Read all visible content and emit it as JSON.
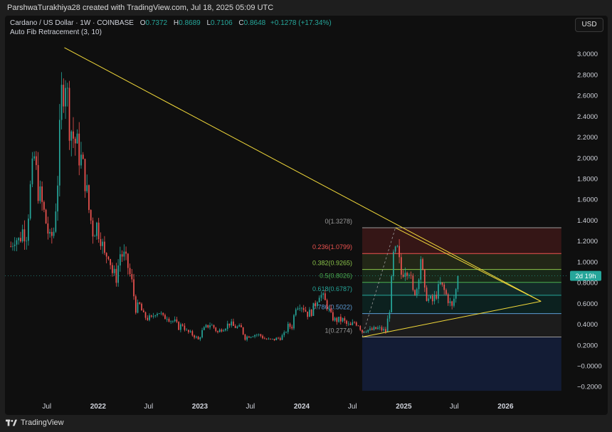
{
  "header": {
    "credit": "ParshwaTurakhiya28 created with TradingView.com, Jul 18, 2025 05:09 UTC"
  },
  "legend": {
    "symbol": "Cardano / US Dollar · 1W · COINBASE",
    "open_label": "O",
    "open": "0.7372",
    "high_label": "H",
    "high": "0.8689",
    "low_label": "L",
    "low": "0.7106",
    "close_label": "C",
    "close": "0.8648",
    "change": "+0.1278 (+17.34%)",
    "indicator": "Auto Fib Retracement (3, 10)"
  },
  "currency_button": "USD",
  "price_label": {
    "text": "2d 19h",
    "value": 0.8648,
    "color": "#26a69a"
  },
  "footer": {
    "brand": "TradingView"
  },
  "colors": {
    "up": "#26a69a",
    "down": "#ef5350",
    "trendline": "#f2d93a",
    "background": "#0f0f0f"
  },
  "chart_data": {
    "type": "candlestick",
    "title": "Cardano / US Dollar · 1W · COINBASE",
    "ylim": [
      -0.26,
      3.08
    ],
    "yticks": [
      3.0,
      2.8,
      2.6,
      2.4,
      2.2,
      2.0,
      1.8,
      1.6,
      1.4,
      1.2,
      1.0,
      0.8,
      0.6,
      0.4,
      0.2,
      0.0,
      -0.2
    ],
    "ytick_labels": [
      "3.0000",
      "2.8000",
      "2.6000",
      "2.4000",
      "2.2000",
      "2.0000",
      "1.8000",
      "1.6000",
      "1.4000",
      "1.2000",
      "1.0000",
      "0.8000",
      "0.6000",
      "0.4000",
      "0.2000",
      "−0.0000",
      "−0.2000"
    ],
    "xlim": [
      "2021-02-01",
      "2026-08-15"
    ],
    "xticks": [
      {
        "date": "2021-07-01",
        "label": "Jul",
        "bold": false
      },
      {
        "date": "2022-01-01",
        "label": "2022",
        "bold": true
      },
      {
        "date": "2022-07-01",
        "label": "Jul",
        "bold": false
      },
      {
        "date": "2023-01-01",
        "label": "2023",
        "bold": true
      },
      {
        "date": "2023-07-01",
        "label": "Jul",
        "bold": false
      },
      {
        "date": "2024-01-01",
        "label": "2024",
        "bold": true
      },
      {
        "date": "2024-07-01",
        "label": "Jul",
        "bold": false
      },
      {
        "date": "2025-01-01",
        "label": "2025",
        "bold": true
      },
      {
        "date": "2025-07-01",
        "label": "Jul",
        "bold": false
      },
      {
        "date": "2026-01-01",
        "label": "2026",
        "bold": true
      }
    ],
    "close_path": [
      [
        "2021-02-22",
        1.15
      ],
      [
        "2021-03-08",
        1.25
      ],
      [
        "2021-03-22",
        1.2
      ],
      [
        "2021-04-05",
        1.3
      ],
      [
        "2021-04-19",
        1.28
      ],
      [
        "2021-05-03",
        1.7
      ],
      [
        "2021-05-17",
        2.0
      ],
      [
        "2021-05-31",
        1.7
      ],
      [
        "2021-06-14",
        1.55
      ],
      [
        "2021-06-28",
        1.38
      ],
      [
        "2021-07-12",
        1.2
      ],
      [
        "2021-07-26",
        1.3
      ],
      [
        "2021-08-09",
        1.8
      ],
      [
        "2021-08-23",
        2.6
      ],
      [
        "2021-09-06",
        2.8
      ],
      [
        "2021-09-20",
        2.35
      ],
      [
        "2021-10-04",
        2.2
      ],
      [
        "2021-10-18",
        2.1
      ],
      [
        "2021-11-01",
        1.98
      ],
      [
        "2021-11-15",
        1.8
      ],
      [
        "2021-11-29",
        1.5
      ],
      [
        "2021-12-13",
        1.3
      ],
      [
        "2021-12-27",
        1.35
      ],
      [
        "2022-01-10",
        1.25
      ],
      [
        "2022-01-24",
        1.05
      ],
      [
        "2022-02-07",
        1.1
      ],
      [
        "2022-02-21",
        0.9
      ],
      [
        "2022-03-07",
        0.85
      ],
      [
        "2022-03-21",
        1.08
      ],
      [
        "2022-04-04",
        1.05
      ],
      [
        "2022-04-18",
        0.95
      ],
      [
        "2022-05-02",
        0.8
      ],
      [
        "2022-05-16",
        0.55
      ],
      [
        "2022-05-30",
        0.58
      ],
      [
        "2022-06-13",
        0.48
      ],
      [
        "2022-06-27",
        0.46
      ],
      [
        "2022-07-11",
        0.45
      ],
      [
        "2022-07-25",
        0.52
      ],
      [
        "2022-08-08",
        0.52
      ],
      [
        "2022-08-22",
        0.46
      ],
      [
        "2022-09-05",
        0.48
      ],
      [
        "2022-09-19",
        0.44
      ],
      [
        "2022-10-03",
        0.42
      ],
      [
        "2022-10-17",
        0.37
      ],
      [
        "2022-10-31",
        0.4
      ],
      [
        "2022-11-14",
        0.33
      ],
      [
        "2022-11-28",
        0.31
      ],
      [
        "2022-12-12",
        0.29
      ],
      [
        "2022-12-26",
        0.25
      ],
      [
        "2023-01-09",
        0.33
      ],
      [
        "2023-01-23",
        0.37
      ],
      [
        "2023-02-06",
        0.4
      ],
      [
        "2023-02-20",
        0.37
      ],
      [
        "2023-03-06",
        0.32
      ],
      [
        "2023-03-20",
        0.36
      ],
      [
        "2023-04-03",
        0.38
      ],
      [
        "2023-04-17",
        0.41
      ],
      [
        "2023-05-01",
        0.38
      ],
      [
        "2023-05-15",
        0.37
      ],
      [
        "2023-05-29",
        0.36
      ],
      [
        "2023-06-12",
        0.27
      ],
      [
        "2023-06-26",
        0.29
      ],
      [
        "2023-07-10",
        0.3
      ],
      [
        "2023-07-24",
        0.3
      ],
      [
        "2023-08-07",
        0.29
      ],
      [
        "2023-08-21",
        0.26
      ],
      [
        "2023-09-04",
        0.25
      ],
      [
        "2023-09-18",
        0.25
      ],
      [
        "2023-10-02",
        0.26
      ],
      [
        "2023-10-16",
        0.27
      ],
      [
        "2023-10-30",
        0.3
      ],
      [
        "2023-11-13",
        0.38
      ],
      [
        "2023-11-27",
        0.38
      ],
      [
        "2023-12-11",
        0.58
      ],
      [
        "2023-12-25",
        0.6
      ],
      [
        "2024-01-08",
        0.56
      ],
      [
        "2024-01-22",
        0.5
      ],
      [
        "2024-02-05",
        0.52
      ],
      [
        "2024-02-19",
        0.6
      ],
      [
        "2024-03-04",
        0.7
      ],
      [
        "2024-03-18",
        0.65
      ],
      [
        "2024-04-01",
        0.58
      ],
      [
        "2024-04-15",
        0.48
      ],
      [
        "2024-04-29",
        0.44
      ],
      [
        "2024-05-13",
        0.44
      ],
      [
        "2024-05-27",
        0.44
      ],
      [
        "2024-06-10",
        0.4
      ],
      [
        "2024-06-24",
        0.38
      ],
      [
        "2024-07-08",
        0.42
      ],
      [
        "2024-07-22",
        0.4
      ],
      [
        "2024-08-05",
        0.33
      ],
      [
        "2024-08-19",
        0.35
      ],
      [
        "2024-09-02",
        0.34
      ],
      [
        "2024-09-16",
        0.35
      ],
      [
        "2024-09-30",
        0.36
      ],
      [
        "2024-10-14",
        0.35
      ],
      [
        "2024-10-28",
        0.33
      ],
      [
        "2024-11-11",
        0.55
      ],
      [
        "2024-11-25",
        1.05
      ],
      [
        "2024-12-09",
        1.1
      ],
      [
        "2024-12-23",
        0.88
      ],
      [
        "2025-01-06",
        0.95
      ],
      [
        "2025-01-20",
        0.93
      ],
      [
        "2025-02-03",
        0.7
      ],
      [
        "2025-02-17",
        0.75
      ],
      [
        "2025-03-03",
        1.05
      ],
      [
        "2025-03-17",
        0.7
      ],
      [
        "2025-03-31",
        0.64
      ],
      [
        "2025-04-14",
        0.62
      ],
      [
        "2025-04-28",
        0.69
      ],
      [
        "2025-05-12",
        0.78
      ],
      [
        "2025-05-26",
        0.72
      ],
      [
        "2025-06-09",
        0.64
      ],
      [
        "2025-06-23",
        0.56
      ],
      [
        "2025-07-07",
        0.73
      ],
      [
        "2025-07-14",
        0.8648
      ]
    ],
    "fib_levels": [
      {
        "ratio": "0",
        "value": 1.3278,
        "label": "0(1.3278)",
        "color": "#9b9b9b",
        "fill": "rgba(229,57,53,0.18)"
      },
      {
        "ratio": "0.236",
        "value": 1.0799,
        "label": "0.236(1.0799)",
        "color": "#ef5350",
        "fill": "rgba(120,150,60,0.18)"
      },
      {
        "ratio": "0.382",
        "value": 0.9265,
        "label": "0.382(0.9265)",
        "color": "#8bc34a",
        "fill": "rgba(76,175,80,0.16)"
      },
      {
        "ratio": "0.5",
        "value": 0.8026,
        "label": "0.5(0.8026)",
        "color": "#4caf50",
        "fill": "rgba(38,166,154,0.18)"
      },
      {
        "ratio": "0.618",
        "value": 0.6787,
        "label": "0.618(0.6787)",
        "color": "#26a69a",
        "fill": "rgba(0,150,136,0.14)"
      },
      {
        "ratio": "0.786",
        "value": 0.5022,
        "label": "0.786(0.5022)",
        "color": "#5b9bd5",
        "fill": "rgba(90,90,90,0.18)"
      },
      {
        "ratio": "1",
        "value": 0.2774,
        "label": "1(0.2774)",
        "color": "#9b9b9b",
        "fill": "rgba(41,98,255,0.16)"
      }
    ],
    "fib_range": {
      "start": "2024-08-05",
      "end": "2026-07-20",
      "floor": -0.24
    },
    "trendlines": [
      {
        "from": [
          "2021-09-02",
          3.06
        ],
        "to": [
          "2026-05-08",
          0.62
        ]
      },
      {
        "from": [
          "2024-08-05",
          0.2774
        ],
        "to": [
          "2026-05-08",
          0.62
        ]
      },
      {
        "from": [
          "2024-12-02",
          1.3278
        ],
        "to": [
          "2026-05-08",
          0.62
        ]
      }
    ],
    "fib_anchor_line": {
      "from": [
        "2024-08-05",
        0.2774
      ],
      "to": [
        "2024-12-02",
        1.3278
      ]
    }
  }
}
